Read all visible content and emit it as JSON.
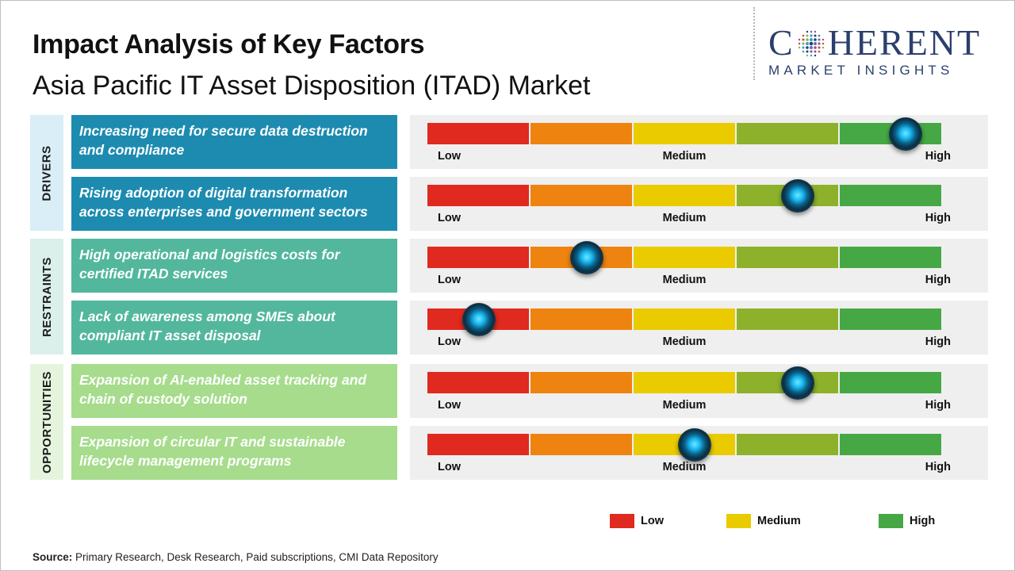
{
  "header": {
    "title": "Impact Analysis of Key Factors",
    "subtitle": "Asia Pacific IT Asset Disposition (ITAD) Market"
  },
  "logo": {
    "line1_a": "C",
    "line1_b": "HERENT",
    "line2": "MARKET INSIGHTS"
  },
  "colors": {
    "low": "#e0291f",
    "low_medium": "#ef8310",
    "medium": "#e9cb00",
    "medium_high": "#8db12b",
    "high": "#46a844",
    "drivers_box": "#1d8bb0",
    "drivers_tab": "#d9eef6",
    "restraints_box": "#52b79d",
    "restraints_tab": "#dbefeb",
    "opportunities_box": "#a6dc8c",
    "opportunities_tab": "#e5f5dd"
  },
  "chart_data": {
    "type": "gauge",
    "scale_labels": [
      "Low",
      "Medium",
      "High"
    ],
    "impact_scale": [
      0,
      1
    ],
    "groups": [
      {
        "name": "DRIVERS",
        "factors": [
          {
            "label": "Increasing need for secure data destruction and compliance",
            "impact": 0.93
          },
          {
            "label": "Rising adoption of digital transformation across enterprises and government sectors",
            "impact": 0.72
          }
        ]
      },
      {
        "name": "RESTRAINTS",
        "factors": [
          {
            "label": "High operational and logistics costs for certified ITAD services",
            "impact": 0.31
          },
          {
            "label": "Lack of awareness among SMEs about compliant IT asset disposal",
            "impact": 0.1
          }
        ]
      },
      {
        "name": "OPPORTUNITIES",
        "factors": [
          {
            "label": "Expansion of AI-enabled asset tracking and chain of custody solution",
            "impact": 0.72
          },
          {
            "label": "Expansion of circular IT and sustainable lifecycle management programs",
            "impact": 0.52
          }
        ]
      }
    ],
    "legend": [
      {
        "label": "Low"
      },
      {
        "label": "Medium"
      },
      {
        "label": "High"
      }
    ]
  },
  "source": {
    "label": "Source:",
    "text": " Primary Research, Desk Research, Paid subscriptions, CMI Data Repository"
  }
}
